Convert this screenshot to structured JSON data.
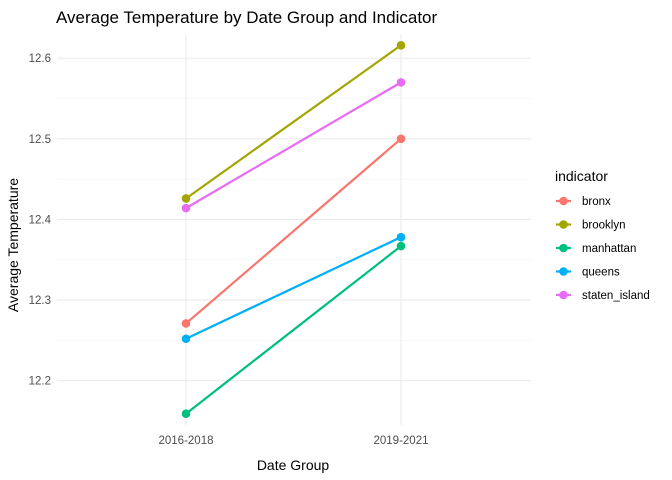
{
  "chart_data": {
    "type": "line",
    "title": "Average Temperature by Date Group and Indicator",
    "xlabel": "Date Group",
    "ylabel": "Average Temperature",
    "categories": [
      "2016-2018",
      "2019-2021"
    ],
    "ylim": [
      12.145,
      12.63
    ],
    "yticks": [
      "12.2",
      "12.3",
      "12.4",
      "12.5",
      "12.6"
    ],
    "grid": true,
    "legend": {
      "title": "indicator",
      "placement": "right"
    },
    "series": [
      {
        "name": "bronx",
        "color": "#F8766D",
        "values": [
          12.271,
          12.5
        ]
      },
      {
        "name": "brooklyn",
        "color": "#A3A500",
        "values": [
          12.426,
          12.616
        ]
      },
      {
        "name": "manhattan",
        "color": "#00BF7D",
        "values": [
          12.159,
          12.367
        ]
      },
      {
        "name": "queens",
        "color": "#00B0F6",
        "values": [
          12.252,
          12.378
        ]
      },
      {
        "name": "staten_island",
        "color": "#E76BF3",
        "values": [
          12.414,
          12.57
        ]
      }
    ]
  }
}
